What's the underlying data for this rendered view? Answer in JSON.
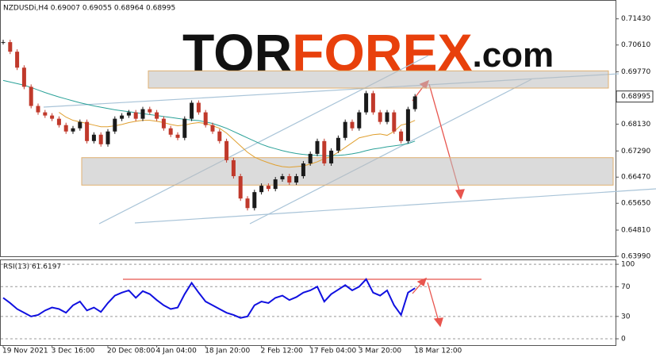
{
  "watermark": {
    "parts": [
      "TOR",
      "FOREX",
      ".com"
    ]
  },
  "chart_data": [
    {
      "type": "candlestick",
      "title": "NZDUSDi,H4 0.69007 0.69055 0.68964 0.68995",
      "categories": [
        "19 Nov 2021",
        null,
        null,
        null,
        null,
        null,
        null,
        "3 Dec 16:00",
        null,
        null,
        null,
        null,
        null,
        null,
        null,
        "20 Dec 08:00",
        null,
        null,
        null,
        null,
        null,
        null,
        "4 Jan 04:00",
        null,
        null,
        null,
        null,
        null,
        null,
        "18 Jan 20:00",
        null,
        null,
        null,
        null,
        null,
        null,
        null,
        "2 Feb 12:00",
        null,
        null,
        null,
        null,
        null,
        null,
        "17 Feb 04:00",
        null,
        null,
        null,
        null,
        null,
        null,
        "3 Mar 20:00",
        null,
        null,
        null,
        null,
        null,
        null,
        null,
        "18 Mar 12:00"
      ],
      "values": [
        0.707,
        0.704,
        0.699,
        0.693,
        0.687,
        0.685,
        0.684,
        0.683,
        0.681,
        0.679,
        0.68,
        0.682,
        0.676,
        0.678,
        0.675,
        0.679,
        0.683,
        0.684,
        0.685,
        0.683,
        0.686,
        0.685,
        0.683,
        0.68,
        0.678,
        0.677,
        0.683,
        0.688,
        0.685,
        0.681,
        0.679,
        0.676,
        0.67,
        0.665,
        0.658,
        0.655,
        0.66,
        0.662,
        0.661,
        0.664,
        0.665,
        0.663,
        0.665,
        0.669,
        0.672,
        0.676,
        0.669,
        0.673,
        0.677,
        0.682,
        0.68,
        0.685,
        0.691,
        0.685,
        0.682,
        0.685,
        0.679,
        0.676,
        0.686,
        0.69
      ],
      "color_up": "#1a1a1a",
      "color_down": "#c0392b",
      "lines": [
        {
          "color": "#2aa198",
          "values": [
            0.695,
            0.6945,
            0.694,
            0.6935,
            0.6928,
            0.692,
            0.6912,
            0.6905,
            0.6898,
            0.6892,
            0.6886,
            0.688,
            0.6875,
            0.687,
            0.6866,
            0.6862,
            0.6858,
            0.6855,
            0.6852,
            0.6849,
            0.6846,
            0.6843,
            0.684,
            0.6837,
            0.6834,
            0.6831,
            0.6828,
            0.6826,
            0.6824,
            0.682,
            0.6815,
            0.6808,
            0.68,
            0.679,
            0.678,
            0.677,
            0.676,
            0.675,
            0.6742,
            0.6736,
            0.673,
            0.6725,
            0.6721,
            0.6718,
            0.6716,
            0.6715,
            0.6714,
            0.6714,
            0.6715,
            0.6717,
            0.672,
            0.6724,
            0.673,
            0.6735,
            0.6738,
            0.6742,
            0.6745,
            0.6748,
            0.6752,
            0.676
          ]
        },
        {
          "color": "#e0a030",
          "values": [
            null,
            null,
            null,
            null,
            null,
            null,
            null,
            null,
            0.685,
            0.6835,
            0.6825,
            0.682,
            0.6815,
            0.681,
            0.6805,
            0.6805,
            0.6808,
            0.6812,
            0.6818,
            0.6822,
            0.6825,
            0.6825,
            0.6822,
            0.6818,
            0.6812,
            0.6808,
            0.681,
            0.6815,
            0.6818,
            0.6815,
            0.6808,
            0.68,
            0.6785,
            0.6765,
            0.6745,
            0.6725,
            0.671,
            0.67,
            0.6692,
            0.6685,
            0.668,
            0.6678,
            0.668,
            0.6682,
            0.6688,
            0.6695,
            0.6705,
            0.6712,
            0.6725,
            0.674,
            0.6755,
            0.677,
            0.6775,
            0.678,
            0.6782,
            0.6778,
            0.679,
            0.681,
            0.6815,
            0.6825
          ]
        }
      ],
      "bands": [
        [
          0.6926,
          0.698
        ],
        [
          0.6622,
          0.6708
        ]
      ],
      "last_price": {
        "value": 0.68995,
        "label": "0.68995"
      },
      "ylim": [
        0.6399,
        0.7202
      ],
      "yticks": [
        {
          "value": 0.6399,
          "label": "0.63990"
        },
        {
          "value": 0.6481,
          "label": "0.64810"
        },
        {
          "value": 0.6565,
          "label": "0.65650"
        },
        {
          "value": 0.6647,
          "label": "0.66470"
        },
        {
          "value": 0.6729,
          "label": "0.67290"
        },
        {
          "value": 0.6813,
          "label": "0.68130"
        },
        {
          "value": 0.6977,
          "label": "0.69770"
        },
        {
          "value": 0.7061,
          "label": "0.70610"
        },
        {
          "value": 0.7143,
          "label": "0.71430"
        }
      ]
    },
    {
      "type": "line",
      "title": "RSI(13) 61.6197",
      "color": "#1010e0",
      "values": [
        55,
        48,
        40,
        35,
        30,
        32,
        38,
        42,
        40,
        35,
        45,
        50,
        38,
        42,
        36,
        48,
        58,
        62,
        65,
        55,
        64,
        60,
        52,
        45,
        40,
        42,
        60,
        75,
        62,
        50,
        45,
        40,
        35,
        32,
        28,
        30,
        45,
        50,
        48,
        55,
        58,
        52,
        56,
        62,
        65,
        70,
        50,
        60,
        66,
        72,
        65,
        70,
        80,
        62,
        58,
        65,
        45,
        32,
        62,
        68
      ],
      "ylim": [
        -8.5,
        106.5
      ],
      "yticks": [
        0,
        30,
        70,
        100
      ]
    }
  ]
}
